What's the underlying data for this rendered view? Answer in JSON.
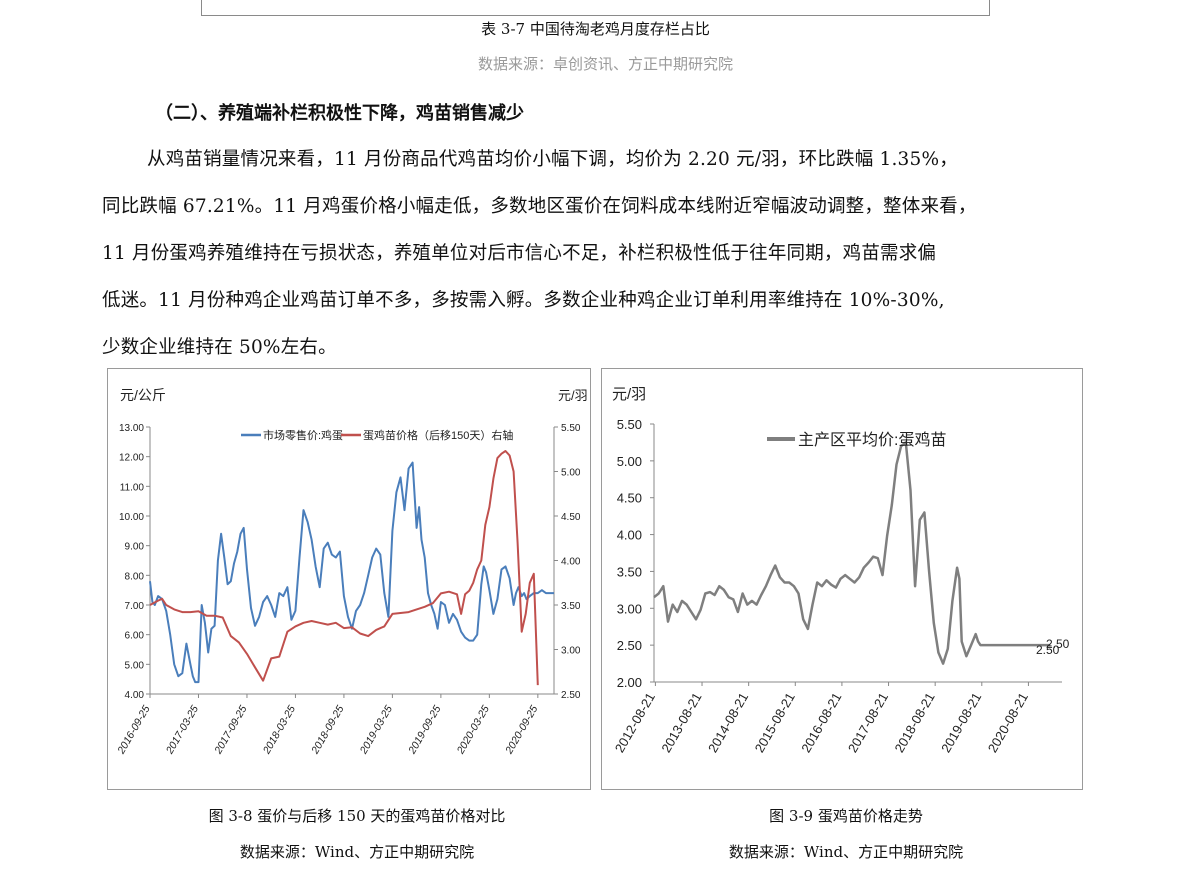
{
  "table_caption": "表 3-7 中国待淘老鸡月度存栏占比",
  "table_source": "数据来源：卓创资讯、方正中期研究院",
  "section_heading": "（二）、养殖端补栏积极性下降，鸡苗销售减少",
  "paragraph_lines": [
    "从鸡苗销量情况来看，11 月份商品代鸡苗均价小幅下调，均价为 2.20 元/羽，环比跌幅 1.35%，",
    "同比跌幅 67.21%。11 月鸡蛋价格小幅走低，多数地区蛋价在饲料成本线附近窄幅波动调整，整体来看，",
    "11 月份蛋鸡养殖维持在亏损状态，养殖单位对后市信心不足，补栏积极性低于往年同期，鸡苗需求偏",
    "低迷。11 月份种鸡企业鸡苗订单不多，多按需入孵。多数企业种鸡企业订单利用率维持在 10%-30%,",
    "少数企业维持在 50%左右。"
  ],
  "figure_left": {
    "caption": "图 3-8  蛋价与后移 150 天的蛋鸡苗价格对比",
    "source": "数据来源：Wind、方正中期研究院"
  },
  "figure_right": {
    "caption": "图 3-9 蛋鸡苗价格走势",
    "source": "数据来源：Wind、方正中期研究院"
  },
  "chart_data": [
    {
      "type": "line",
      "ylabel_left": "元/公斤",
      "ylabel_right": "元/羽",
      "ylim_left": [
        4.0,
        13.0
      ],
      "ylim_right": [
        2.5,
        5.5
      ],
      "yticks_left": [
        "13.00",
        "12.00",
        "11.00",
        "10.00",
        "9.00",
        "8.00",
        "7.00",
        "6.00",
        "5.00",
        "4.00"
      ],
      "yticks_right": [
        "5.50",
        "5.00",
        "4.50",
        "4.00",
        "3.50",
        "3.00",
        "2.50"
      ],
      "x_ticks": [
        "2016-09-25",
        "2017-03-25",
        "2017-09-25",
        "2018-03-25",
        "2018-09-25",
        "2019-03-25",
        "2019-09-25",
        "2020-03-25",
        "2020-09-25"
      ],
      "x_range_months": [
        0,
        50
      ],
      "grid": false,
      "legend": "top",
      "series": [
        {
          "name": "市场零售价:鸡蛋",
          "axis": "left",
          "color": "#4a7ebb",
          "x": [
            0,
            0.3,
            0.6,
            1,
            1.5,
            2,
            2.5,
            3,
            3.5,
            4,
            4.5,
            5,
            5.3,
            5.6,
            6,
            6.4,
            6.8,
            7.2,
            7.6,
            8,
            8.4,
            8.8,
            9.2,
            9.6,
            10,
            10.4,
            10.8,
            11.2,
            11.6,
            12,
            12.5,
            13,
            13.5,
            14,
            14.5,
            15,
            15.5,
            16,
            16.5,
            17,
            17.5,
            18,
            18.5,
            19,
            19.5,
            20,
            20.5,
            21,
            21.5,
            22,
            22.5,
            23,
            23.5,
            24,
            24.5,
            25,
            25.5,
            26,
            26.5,
            27,
            27.5,
            28,
            28.5,
            29,
            29.5,
            30,
            30.5,
            31,
            31.5,
            32,
            32.5,
            33,
            33.3,
            33.6,
            34,
            34.4,
            34.8,
            35.2,
            35.6,
            36,
            36.5,
            37,
            37.5,
            38,
            38.5,
            39,
            39.5,
            40,
            40.5,
            41,
            41.3,
            41.6,
            42,
            42.5,
            43,
            43.5,
            44,
            44.5,
            45,
            45.3,
            45.6,
            46,
            46.3,
            46.6,
            47,
            47.5,
            48,
            48.5,
            49,
            49.5,
            50
          ],
          "values": [
            7.8,
            7.1,
            7.0,
            7.3,
            7.2,
            6.8,
            6.0,
            5.0,
            4.6,
            4.7,
            5.7,
            5.0,
            4.6,
            4.4,
            4.4,
            7.0,
            6.4,
            5.4,
            6.2,
            6.3,
            8.5,
            9.4,
            8.6,
            7.7,
            7.8,
            8.4,
            8.8,
            9.4,
            9.6,
            8.2,
            6.9,
            6.3,
            6.6,
            7.1,
            7.3,
            7.0,
            6.6,
            7.4,
            7.3,
            7.6,
            6.5,
            6.8,
            8.6,
            10.2,
            9.8,
            9.2,
            8.3,
            7.6,
            8.9,
            9.1,
            8.7,
            8.6,
            8.8,
            7.3,
            6.6,
            6.2,
            6.8,
            7.0,
            7.4,
            8.0,
            8.6,
            8.9,
            8.7,
            7.4,
            6.6,
            9.5,
            10.8,
            11.3,
            10.2,
            11.6,
            11.8,
            9.6,
            10.3,
            9.2,
            8.6,
            7.4,
            7.0,
            6.7,
            6.2,
            7.1,
            7.0,
            6.4,
            6.7,
            6.5,
            6.1,
            5.9,
            5.8,
            5.8,
            6.0,
            7.7,
            8.3,
            8.1,
            7.5,
            6.7,
            7.2,
            8.2,
            8.3,
            7.9,
            7.0,
            7.4,
            7.6,
            7.3,
            7.4,
            7.2,
            7.3,
            7.4,
            7.4,
            7.5,
            7.4,
            7.4,
            7.4
          ],
          "note": "x values are months after 2016-09-25"
        },
        {
          "name": "蛋鸡苗价格（后移150天）右轴",
          "axis": "right",
          "color": "#c0504d",
          "x": [
            0,
            1,
            1.5,
            2,
            3,
            4,
            5,
            6,
            7,
            8,
            9,
            10,
            11,
            12,
            13,
            14,
            15,
            16,
            17,
            18,
            19,
            20,
            21,
            22,
            23,
            24,
            25,
            26,
            27,
            28,
            29,
            30,
            31,
            32,
            33,
            34,
            35,
            36,
            37,
            38,
            38.5,
            39,
            39.5,
            40,
            40.5,
            41,
            41.5,
            42,
            42.5,
            43,
            43.5,
            44,
            44.5,
            45,
            45.5,
            46,
            46.5,
            47,
            47.5,
            48
          ],
          "values": [
            3.5,
            3.55,
            3.57,
            3.5,
            3.45,
            3.42,
            3.42,
            3.43,
            3.38,
            3.38,
            3.36,
            3.15,
            3.08,
            2.95,
            2.8,
            2.65,
            2.9,
            2.92,
            3.2,
            3.26,
            3.3,
            3.32,
            3.3,
            3.28,
            3.3,
            3.24,
            3.25,
            3.18,
            3.15,
            3.22,
            3.26,
            3.4,
            3.41,
            3.42,
            3.45,
            3.48,
            3.52,
            3.63,
            3.65,
            3.62,
            3.4,
            3.62,
            3.66,
            3.75,
            3.9,
            4.0,
            4.4,
            4.6,
            4.92,
            5.15,
            5.2,
            5.23,
            5.18,
            5.0,
            4.2,
            3.2,
            3.4,
            3.75,
            3.85,
            2.6
          ],
          "note": "x values are months after 2016-09-25"
        }
      ]
    },
    {
      "type": "line",
      "ylabel": "元/羽",
      "ylim": [
        2.0,
        5.5
      ],
      "yticks": [
        "5.50",
        "5.00",
        "4.50",
        "4.00",
        "3.50",
        "3.00",
        "2.50",
        "2.00"
      ],
      "x_ticks": [
        "2012-08-21",
        "2013-08-21",
        "2014-08-21",
        "2015-08-21",
        "2016-08-21",
        "2017-08-21",
        "2018-08-21",
        "2019-08-21",
        "2020-08-21"
      ],
      "grid": false,
      "legend": "top-left",
      "annotations": [
        "2.50",
        "2.50"
      ],
      "series": [
        {
          "name": "主产区平均价:蛋鸡苗",
          "color": "#7f7f7f",
          "x": [
            2012.6,
            2012.7,
            2012.8,
            2012.9,
            2013.0,
            2013.1,
            2013.2,
            2013.3,
            2013.4,
            2013.5,
            2013.6,
            2013.7,
            2013.8,
            2013.9,
            2014.0,
            2014.1,
            2014.2,
            2014.3,
            2014.4,
            2014.5,
            2014.6,
            2014.7,
            2014.8,
            2014.9,
            2015.0,
            2015.1,
            2015.2,
            2015.3,
            2015.4,
            2015.5,
            2015.6,
            2015.7,
            2015.8,
            2015.9,
            2016.0,
            2016.1,
            2016.2,
            2016.3,
            2016.4,
            2016.5,
            2016.6,
            2016.7,
            2016.8,
            2016.9,
            2017.0,
            2017.1,
            2017.2,
            2017.3,
            2017.4,
            2017.5,
            2017.6,
            2017.7,
            2017.8,
            2017.9,
            2018.0,
            2018.1,
            2018.2,
            2018.3,
            2018.4,
            2018.5,
            2018.6,
            2018.7,
            2018.8,
            2018.9,
            2019.0,
            2019.1,
            2019.15,
            2019.2,
            2019.3,
            2019.4,
            2019.5,
            2019.55,
            2019.6,
            2019.7,
            2019.8,
            2019.9,
            2019.95,
            2020.0,
            2020.05,
            2020.1,
            2020.15,
            2020.2,
            2020.3,
            2020.35,
            2020.4,
            2020.45,
            2020.5,
            2020.55,
            2020.6,
            2020.7,
            2020.75,
            2020.8,
            2020.9,
            2021.0,
            2021.1
          ],
          "values": [
            3.15,
            3.2,
            3.3,
            2.82,
            3.05,
            2.95,
            3.1,
            3.05,
            2.95,
            2.85,
            2.98,
            3.2,
            3.22,
            3.18,
            3.3,
            3.25,
            3.15,
            3.12,
            2.95,
            3.2,
            3.05,
            3.1,
            3.05,
            3.18,
            3.3,
            3.45,
            3.58,
            3.42,
            3.35,
            3.35,
            3.3,
            3.2,
            2.85,
            2.72,
            3.05,
            3.35,
            3.3,
            3.38,
            3.32,
            3.28,
            3.4,
            3.45,
            3.4,
            3.35,
            3.42,
            3.55,
            3.62,
            3.7,
            3.68,
            3.45,
            3.98,
            4.4,
            4.95,
            5.2,
            5.25,
            4.6,
            3.3,
            4.2,
            4.3,
            3.5,
            2.8,
            2.4,
            2.25,
            2.45,
            3.1,
            3.55,
            3.4,
            2.55,
            2.35,
            2.5,
            2.65,
            2.55,
            2.5,
            2.5,
            2.5,
            2.5,
            2.5,
            2.5,
            2.5,
            2.5,
            2.5,
            2.5,
            2.5,
            2.5,
            2.5,
            2.5,
            2.5,
            2.5,
            2.5,
            2.5,
            2.5,
            2.5,
            2.5,
            2.5,
            2.5
          ],
          "note": "x values in decimal years"
        }
      ]
    }
  ]
}
